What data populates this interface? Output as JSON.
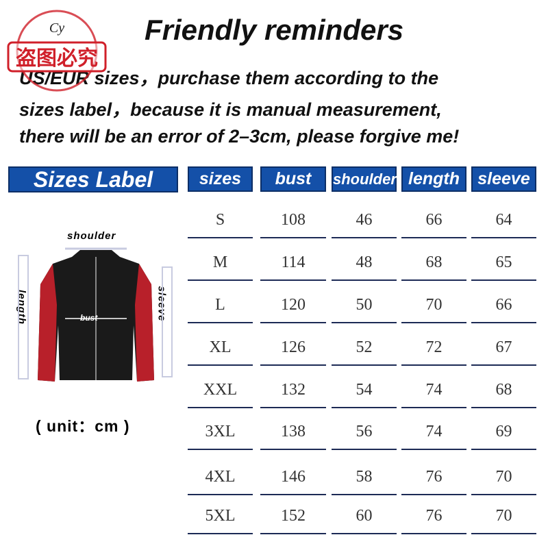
{
  "title": "Friendly reminders",
  "notice": [
    "US/EUR  sizes，purchase them according to the",
    "sizes label，because it is manual measurement,",
    "there will be an error of 2–3cm, please forgive me!"
  ],
  "watermark": {
    "logo": "Cy",
    "text": "盗图必究",
    "color": "#d0202a"
  },
  "sizes_label": "Sizes Label",
  "diagram": {
    "shoulder": "shoulder",
    "length": "length",
    "sleeve": "sleeve",
    "bust": "bust",
    "unit": "( unit：cm )"
  },
  "colors": {
    "header_bg": "#1450a8",
    "rule": "#1c2a55"
  },
  "table": {
    "headers": [
      "sizes",
      "bust",
      "shoulder",
      "length",
      "sleeve"
    ],
    "rows": [
      [
        "S",
        "108",
        "46",
        "66",
        "64"
      ],
      [
        "M",
        "114",
        "48",
        "68",
        "65"
      ],
      [
        "L",
        "120",
        "50",
        "70",
        "66"
      ],
      [
        "XL",
        "126",
        "52",
        "72",
        "67"
      ],
      [
        "XXL",
        "132",
        "54",
        "74",
        "68"
      ],
      [
        "3XL",
        "138",
        "56",
        "74",
        "69"
      ],
      [
        "4XL",
        "146",
        "58",
        "76",
        "70"
      ],
      [
        "5XL",
        "152",
        "60",
        "76",
        "70"
      ]
    ]
  }
}
